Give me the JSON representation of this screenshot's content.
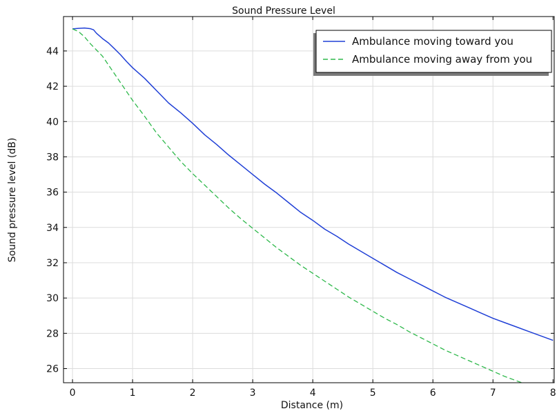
{
  "chart_data": {
    "type": "line",
    "title": "Sound Pressure Level",
    "xlabel": "Distance (m)",
    "ylabel": "Sound pressure level (dB)",
    "xlim": [
      -0.15,
      8.02
    ],
    "ylim": [
      25.2,
      45.95
    ],
    "xticks": [
      0,
      1,
      2,
      3,
      4,
      5,
      6,
      7,
      8
    ],
    "yticks": [
      26,
      28,
      30,
      32,
      34,
      36,
      38,
      40,
      42,
      44
    ],
    "grid": true,
    "legend_position": "top-right",
    "series": [
      {
        "name": "Ambulance moving toward you",
        "color": "#1f3fd6",
        "dash": "solid",
        "x": [
          0,
          0.1,
          0.2,
          0.3,
          0.35,
          0.4,
          0.5,
          0.6,
          0.7,
          0.8,
          0.9,
          1.0,
          1.2,
          1.4,
          1.6,
          1.8,
          2.0,
          2.2,
          2.4,
          2.6,
          2.8,
          3.0,
          3.2,
          3.4,
          3.6,
          3.8,
          4.0,
          4.2,
          4.4,
          4.6,
          4.8,
          5.0,
          5.2,
          5.4,
          5.6,
          5.8,
          6.0,
          6.2,
          6.4,
          6.6,
          6.8,
          7.0,
          7.2,
          7.4,
          7.6,
          7.8,
          8.0
        ],
        "y": [
          45.25,
          45.28,
          45.3,
          45.26,
          45.2,
          45.0,
          44.7,
          44.45,
          44.12,
          43.78,
          43.4,
          43.05,
          42.45,
          41.75,
          41.05,
          40.5,
          39.9,
          39.25,
          38.7,
          38.1,
          37.55,
          37.0,
          36.45,
          35.95,
          35.4,
          34.85,
          34.4,
          33.9,
          33.5,
          33.05,
          32.65,
          32.25,
          31.85,
          31.45,
          31.1,
          30.75,
          30.4,
          30.05,
          29.75,
          29.45,
          29.15,
          28.85,
          28.6,
          28.35,
          28.1,
          27.85,
          27.6
        ]
      },
      {
        "name": "Ambulance moving away from you",
        "color": "#2db84a",
        "dash": "dashed",
        "x": [
          0,
          0.1,
          0.2,
          0.3,
          0.4,
          0.5,
          0.6,
          0.7,
          0.8,
          0.9,
          1.0,
          1.2,
          1.4,
          1.6,
          1.8,
          2.0,
          2.2,
          2.4,
          2.6,
          2.8,
          3.0,
          3.2,
          3.4,
          3.6,
          3.8,
          4.0,
          4.2,
          4.4,
          4.6,
          4.8,
          5.0,
          5.2,
          5.4,
          5.6,
          5.8,
          6.0,
          6.2,
          6.4,
          6.6,
          6.8,
          7.0,
          7.2,
          7.4,
          7.6,
          7.8,
          8.0
        ],
        "y": [
          45.25,
          45.1,
          44.8,
          44.4,
          44.05,
          43.7,
          43.2,
          42.7,
          42.2,
          41.7,
          41.2,
          40.3,
          39.35,
          38.55,
          37.75,
          37.05,
          36.4,
          35.75,
          35.1,
          34.5,
          33.95,
          33.4,
          32.85,
          32.35,
          31.85,
          31.4,
          30.95,
          30.5,
          30.05,
          29.65,
          29.25,
          28.85,
          28.5,
          28.1,
          27.75,
          27.4,
          27.05,
          26.75,
          26.45,
          26.15,
          25.85,
          25.55,
          25.3,
          25.05,
          24.8,
          24.55
        ]
      }
    ]
  }
}
